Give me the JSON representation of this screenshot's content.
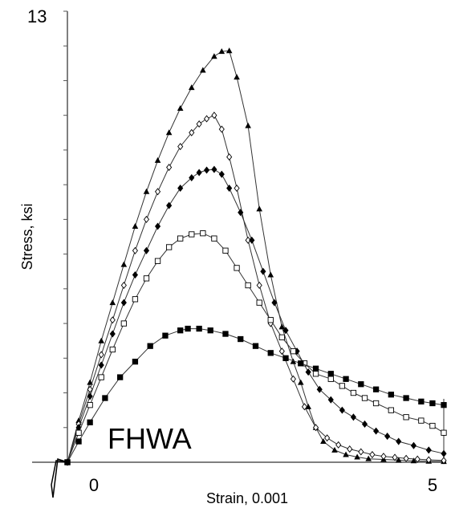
{
  "chart_data": {
    "type": "line",
    "annotation": "FHWA",
    "xlabel": "Strain, 0.001",
    "ylabel": "Stress, ksi",
    "x_tick_labels": [
      "0",
      "5"
    ],
    "y_tick_labels": [
      "13"
    ],
    "xlim": [
      -0.1,
      5.0
    ],
    "ylim": [
      0,
      13
    ],
    "grid": false,
    "legend": "none",
    "series": [
      {
        "marker": "filled-triangle",
        "x": [
          0,
          0.15,
          0.3,
          0.45,
          0.6,
          0.75,
          0.9,
          1.05,
          1.2,
          1.35,
          1.5,
          1.65,
          1.8,
          1.95,
          2.05,
          2.15,
          2.25,
          2.4,
          2.55,
          2.7,
          2.85,
          3.0,
          3.1,
          3.2,
          3.3,
          3.4,
          3.55,
          3.7,
          3.85,
          4.0,
          4.2,
          4.4,
          4.6,
          4.8,
          5.0
        ],
        "y": [
          0,
          1.2,
          2.3,
          3.5,
          4.6,
          5.7,
          6.8,
          7.8,
          8.7,
          9.5,
          10.2,
          10.8,
          11.3,
          11.7,
          11.84,
          11.86,
          11.1,
          9.7,
          7.3,
          5.4,
          3.9,
          2.9,
          2.3,
          1.6,
          1.0,
          0.6,
          0.35,
          0.22,
          0.15,
          0.1,
          0.08,
          0.06,
          0.04,
          0.03,
          0.02
        ]
      },
      {
        "marker": "open-diamond",
        "x": [
          0,
          0.15,
          0.3,
          0.45,
          0.6,
          0.75,
          0.9,
          1.05,
          1.2,
          1.35,
          1.5,
          1.65,
          1.75,
          1.85,
          1.95,
          2.05,
          2.15,
          2.25,
          2.4,
          2.55,
          2.7,
          2.85,
          3.0,
          3.15,
          3.3,
          3.45,
          3.6,
          3.75,
          3.9,
          4.05,
          4.2,
          4.35,
          4.5,
          4.65,
          4.8,
          5.0
        ],
        "y": [
          0,
          1.1,
          2.1,
          3.1,
          4.1,
          5.1,
          6.1,
          7.0,
          7.8,
          8.5,
          9.1,
          9.5,
          9.75,
          9.9,
          10.0,
          9.6,
          8.8,
          7.9,
          6.4,
          5.1,
          4.0,
          3.2,
          2.4,
          1.6,
          1.0,
          0.7,
          0.5,
          0.38,
          0.3,
          0.22,
          0.17,
          0.14,
          0.11,
          0.09,
          0.07,
          0.05
        ]
      },
      {
        "marker": "filled-diamond",
        "x": [
          0,
          0.15,
          0.3,
          0.45,
          0.6,
          0.75,
          0.9,
          1.05,
          1.2,
          1.35,
          1.5,
          1.65,
          1.75,
          1.85,
          1.95,
          2.05,
          2.15,
          2.3,
          2.45,
          2.6,
          2.75,
          2.9,
          3.05,
          3.2,
          3.35,
          3.5,
          3.65,
          3.8,
          3.95,
          4.1,
          4.25,
          4.4,
          4.6,
          4.8,
          5.0
        ],
        "y": [
          0,
          1.0,
          1.9,
          2.8,
          3.7,
          4.6,
          5.4,
          6.1,
          6.8,
          7.4,
          7.9,
          8.2,
          8.35,
          8.42,
          8.44,
          8.3,
          7.9,
          7.2,
          6.4,
          5.5,
          4.6,
          3.8,
          3.2,
          2.6,
          2.1,
          1.8,
          1.5,
          1.3,
          1.1,
          0.9,
          0.75,
          0.6,
          0.48,
          0.35,
          0.25
        ]
      },
      {
        "marker": "open-square",
        "x": [
          0,
          0.15,
          0.3,
          0.45,
          0.6,
          0.75,
          0.9,
          1.05,
          1.2,
          1.35,
          1.5,
          1.65,
          1.8,
          1.95,
          2.1,
          2.25,
          2.4,
          2.55,
          2.7,
          2.85,
          3.0,
          3.15,
          3.3,
          3.5,
          3.65,
          3.8,
          3.95,
          4.1,
          4.3,
          4.5,
          4.7,
          4.85,
          5.0
        ],
        "y": [
          0,
          0.85,
          1.65,
          2.45,
          3.25,
          4.0,
          4.7,
          5.3,
          5.8,
          6.2,
          6.45,
          6.57,
          6.6,
          6.45,
          6.1,
          5.6,
          5.1,
          4.6,
          4.1,
          3.6,
          3.2,
          2.85,
          2.55,
          2.4,
          2.2,
          2.0,
          1.85,
          1.7,
          1.5,
          1.3,
          1.2,
          1.05,
          0.85
        ]
      },
      {
        "marker": "filled-square",
        "x": [
          0,
          0.15,
          0.3,
          0.5,
          0.7,
          0.9,
          1.1,
          1.3,
          1.5,
          1.6,
          1.75,
          1.9,
          2.1,
          2.3,
          2.5,
          2.7,
          2.9,
          3.1,
          3.3,
          3.5,
          3.7,
          3.9,
          4.1,
          4.3,
          4.5,
          4.7,
          4.85,
          5.0
        ],
        "y": [
          0,
          0.6,
          1.15,
          1.85,
          2.45,
          2.9,
          3.35,
          3.65,
          3.8,
          3.85,
          3.85,
          3.8,
          3.7,
          3.55,
          3.35,
          3.15,
          3.0,
          2.85,
          2.7,
          2.55,
          2.4,
          2.25,
          2.1,
          1.95,
          1.85,
          1.75,
          1.7,
          1.65
        ]
      }
    ]
  }
}
